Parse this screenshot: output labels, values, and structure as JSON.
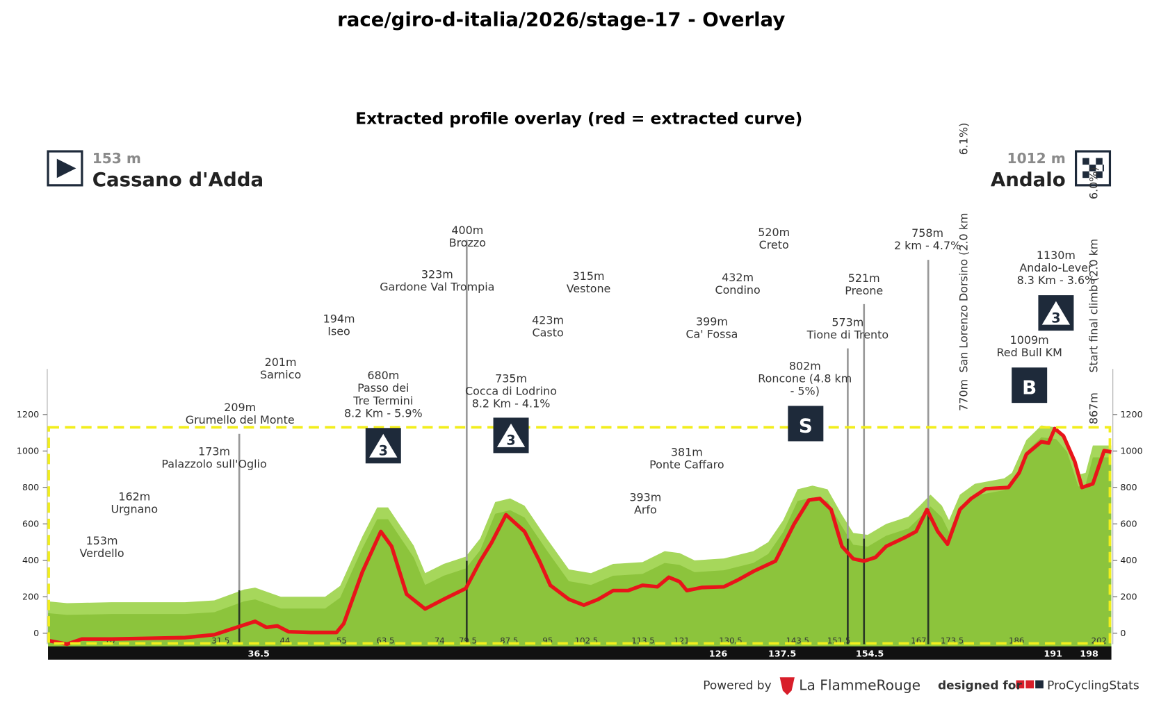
{
  "chart_data": {
    "type": "area",
    "title": "race/giro-d-italia/2026/stage-17 - Overlay",
    "subtitle": "Extracted profile overlay (red = extracted curve)",
    "start": {
      "elevation": "153 m",
      "name": "Cassano d'Adda"
    },
    "finish": {
      "elevation": "1012 m",
      "name": "Andalo"
    },
    "xlim": [
      -2,
      204.4
    ],
    "ylim": [
      -60,
      1450
    ],
    "yticks": [
      0,
      200,
      400,
      600,
      800,
      1000,
      1200
    ],
    "xticks": [
      10,
      {
        "value": 31.5,
        "label": "31,5"
      },
      44,
      55,
      {
        "value": 63.5,
        "label": "63,5"
      },
      74,
      79.5,
      87.5,
      95,
      102.5,
      113.5,
      121,
      130.5,
      143.5,
      151.5,
      167,
      173.5,
      186,
      202
    ],
    "xticks_lower": [
      36.5,
      126,
      137.5,
      154.5,
      191,
      198
    ],
    "series": [
      {
        "type": "area",
        "color": "#a6d75b",
        "x": [
          -2,
          1.7,
          10.3,
          24.6,
          30.3,
          36.1,
          38.2,
          43.2,
          51.8,
          54.7,
          59.0,
          61.9,
          64.0,
          69.0,
          71.2,
          74.8,
          79.1,
          81.9,
          84.8,
          87.7,
          90.5,
          94.8,
          99.1,
          103.4,
          107.7,
          113.4,
          117.7,
          120.6,
          123.5,
          129.2,
          134.9,
          137.8,
          140.7,
          143.5,
          146.4,
          149.3,
          152.1,
          154.3,
          157.1,
          160.7,
          165.0,
          167.2,
          169.3,
          171.5,
          172.9,
          175.0,
          177.9,
          183.6,
          185.1,
          187.9,
          190.8,
          193.7,
          195.8,
          198.0,
          199.4,
          200.8,
          204.4
        ],
        "values": [
          175,
          165,
          170,
          170,
          180,
          240,
          250,
          200,
          200,
          260,
          530,
          690,
          690,
          480,
          330,
          380,
          420,
          520,
          720,
          740,
          700,
          520,
          350,
          330,
          380,
          390,
          450,
          440,
          400,
          410,
          450,
          500,
          620,
          790,
          810,
          790,
          650,
          550,
          540,
          600,
          640,
          700,
          760,
          700,
          620,
          760,
          820,
          850,
          880,
          1060,
          1140,
          1130,
          1060,
          870,
          880,
          1030,
          1030
        ]
      },
      {
        "type": "line",
        "color": "#e8141a",
        "x": [
          -2,
          1.7,
          4.6,
          10.3,
          17.4,
          24.6,
          30.3,
          34.6,
          38.2,
          40.4,
          42.5,
          44.7,
          49.0,
          54.0,
          55.4,
          59.0,
          62.6,
          64.7,
          67.6,
          71.2,
          74.8,
          79.1,
          81.9,
          84.1,
          86.9,
          90.5,
          93.4,
          95.5,
          99.1,
          102.0,
          104.8,
          107.7,
          110.6,
          113.4,
          116.3,
          118.5,
          120.6,
          122.0,
          124.9,
          129.2,
          132.1,
          134.9,
          139.2,
          142.8,
          145.7,
          147.8,
          150.0,
          152.1,
          154.3,
          156.4,
          158.6,
          160.7,
          164.3,
          166.5,
          168.6,
          170.7,
          172.6,
          175.0,
          177.2,
          180.0,
          184.4,
          186.5,
          187.9,
          190.8,
          192.2,
          193.4,
          195.1,
          197.3,
          198.7,
          200.8,
          203.0,
          204.4
        ],
        "values": [
          -40,
          -60,
          -32,
          -32,
          -28,
          -24,
          -8,
          32,
          65,
          32,
          40,
          8,
          4,
          4,
          53,
          335,
          558,
          477,
          214,
          133,
          186,
          246,
          396,
          497,
          650,
          558,
          396,
          263,
          186,
          154,
          186,
          234,
          234,
          263,
          255,
          307,
          283,
          234,
          251,
          255,
          295,
          339,
          396,
          598,
          731,
          739,
          679,
          477,
          408,
          396,
          416,
          477,
          525,
          558,
          679,
          558,
          489,
          679,
          739,
          792,
          800,
          881,
          982,
          1051,
          1043,
          1123,
          1083,
          941,
          800,
          820,
          1002,
          994
        ]
      }
    ],
    "annotations": [
      [
        "153m",
        "Verdello"
      ],
      [
        "162m",
        "Urgnano"
      ],
      [
        "173m",
        "Palazzolo sull'Oglio"
      ],
      [
        "209m",
        "Grumello del Monte"
      ],
      [
        "201m",
        "Sarnico"
      ],
      [
        "194m",
        "Iseo"
      ],
      [
        "680m",
        "Passo dei",
        "Tre Termini",
        "8.2 Km - 5.9%"
      ],
      [
        "323m",
        "Gardone Val Trompia"
      ],
      [
        "400m",
        "Brozzo"
      ],
      [
        "735m",
        "Cocca di Lodrino",
        "8.2 Km - 4.1%"
      ],
      [
        "423m",
        "Casto"
      ],
      [
        "315m",
        "Vestone"
      ],
      [
        "393m",
        "Arfo"
      ],
      [
        "381m",
        "Ponte Caffaro"
      ],
      [
        "399m",
        "Ca' Fossa"
      ],
      [
        "432m",
        "Condino"
      ],
      [
        "520m",
        "Creto"
      ],
      [
        "802m",
        "Roncone (4.8 km",
        "- 5%)"
      ],
      [
        "573m",
        "Tione di Trento"
      ],
      [
        "521m",
        "Preone"
      ],
      [
        "758m",
        "2 km - 4.7%"
      ],
      [
        "1009m",
        "Red Bull KM"
      ],
      [
        "1130m",
        "Andalo-Lever",
        "8.3 Km - 3.6%"
      ],
      [
        "770m",
        "San Lorenzo Dorsino (2.0 km",
        "6.1%)"
      ],
      [
        "867m",
        "Start final climb (2.0 km",
        "6.0%)"
      ]
    ],
    "badges": [
      "3",
      "3",
      "S",
      "B",
      "3"
    ],
    "footer": {
      "powered": "Powered by",
      "brand": "La FlammeRouge",
      "designed": "designed for",
      "site": "ProCyclingStats"
    }
  }
}
